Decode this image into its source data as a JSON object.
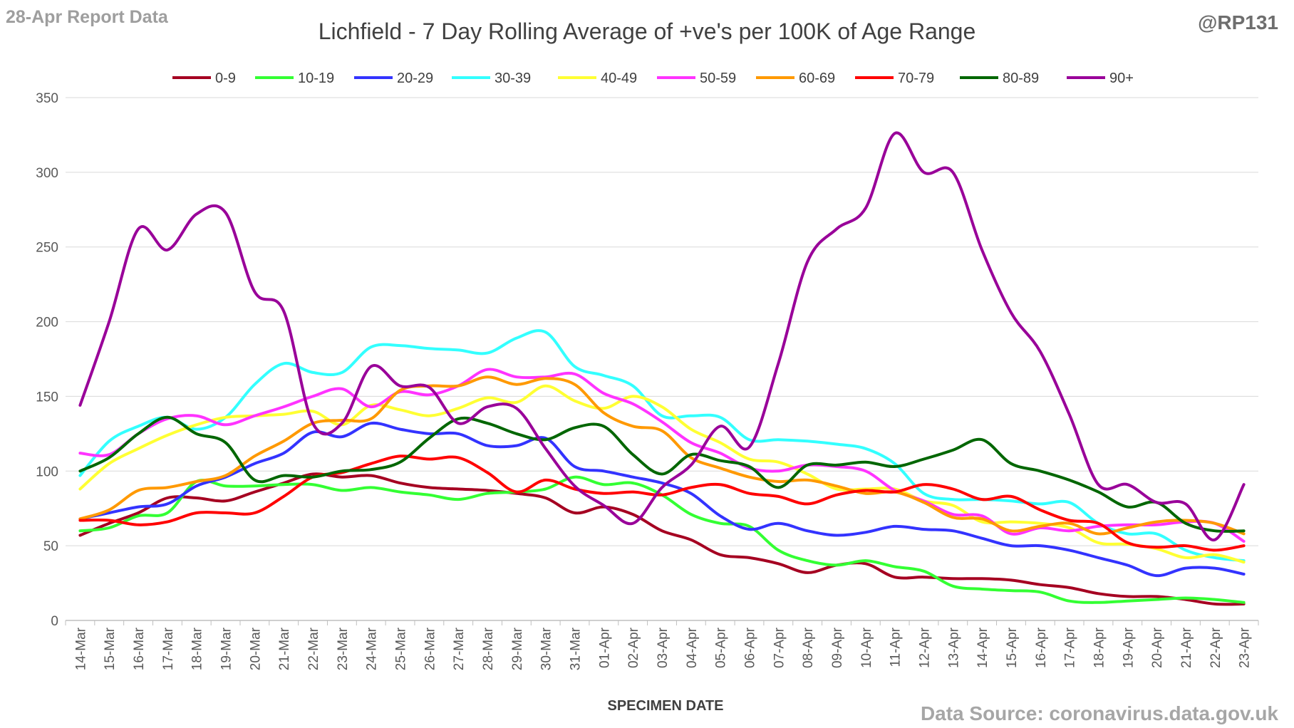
{
  "header": {
    "report_label": "28-Apr Report Data",
    "handle": "@RP131",
    "source": "Data Source: coronavirus.data.gov.uk"
  },
  "chart_data": {
    "type": "line",
    "title": "Lichfield - 7 Day Rolling Average of +ve's per 100K of Age Range",
    "xlabel": "SPECIMEN DATE",
    "ylabel": "",
    "ylim": [
      0,
      350
    ],
    "yticks": [
      0,
      50,
      100,
      150,
      200,
      250,
      300,
      350
    ],
    "grid": true,
    "legend_position": "top",
    "categories": [
      "14-Mar",
      "15-Mar",
      "16-Mar",
      "17-Mar",
      "18-Mar",
      "19-Mar",
      "20-Mar",
      "21-Mar",
      "22-Mar",
      "23-Mar",
      "24-Mar",
      "25-Mar",
      "26-Mar",
      "27-Mar",
      "28-Mar",
      "29-Mar",
      "30-Mar",
      "31-Mar",
      "01-Apr",
      "02-Apr",
      "03-Apr",
      "04-Apr",
      "05-Apr",
      "06-Apr",
      "07-Apr",
      "08-Apr",
      "09-Apr",
      "10-Apr",
      "11-Apr",
      "12-Apr",
      "13-Apr",
      "14-Apr",
      "15-Apr",
      "16-Apr",
      "17-Apr",
      "18-Apr",
      "19-Apr",
      "20-Apr",
      "21-Apr",
      "22-Apr",
      "23-Apr"
    ],
    "series": [
      {
        "name": "0-9",
        "color": "#A50021",
        "values": [
          57,
          65,
          72,
          82,
          82,
          80,
          86,
          92,
          98,
          96,
          97,
          92,
          89,
          88,
          87,
          85,
          82,
          72,
          76,
          71,
          60,
          54,
          44,
          42,
          38,
          32,
          37,
          38,
          29,
          29,
          28,
          28,
          27,
          24,
          22,
          18,
          16,
          16,
          14,
          11,
          11
        ]
      },
      {
        "name": "10-19",
        "color": "#33FF33",
        "values": [
          60,
          62,
          70,
          72,
          93,
          90,
          90,
          91,
          91,
          87,
          89,
          86,
          84,
          81,
          85,
          86,
          88,
          96,
          91,
          92,
          84,
          71,
          65,
          63,
          47,
          40,
          37,
          40,
          36,
          33,
          23,
          21,
          20,
          19,
          13,
          12,
          13,
          14,
          15,
          14,
          12
        ]
      },
      {
        "name": "20-29",
        "color": "#3333FF",
        "values": [
          68,
          72,
          76,
          78,
          90,
          96,
          105,
          112,
          126,
          123,
          132,
          128,
          125,
          125,
          117,
          117,
          122,
          103,
          100,
          96,
          92,
          85,
          70,
          61,
          65,
          60,
          57,
          59,
          63,
          61,
          60,
          55,
          50,
          50,
          47,
          42,
          37,
          30,
          35,
          35,
          31
        ]
      },
      {
        "name": "30-39",
        "color": "#33FFFF",
        "values": [
          97,
          120,
          130,
          136,
          128,
          136,
          158,
          172,
          166,
          166,
          183,
          184,
          182,
          181,
          179,
          189,
          193,
          170,
          164,
          157,
          137,
          137,
          136,
          121,
          121,
          120,
          118,
          115,
          105,
          85,
          81,
          81,
          80,
          78,
          79,
          65,
          58,
          58,
          47,
          42,
          40
        ]
      },
      {
        "name": "40-49",
        "color": "#FFFF33",
        "values": [
          88,
          105,
          115,
          124,
          131,
          136,
          137,
          138,
          140,
          131,
          144,
          141,
          137,
          142,
          149,
          146,
          157,
          147,
          142,
          150,
          143,
          128,
          119,
          108,
          106,
          98,
          88,
          88,
          88,
          80,
          77,
          66,
          66,
          65,
          62,
          52,
          51,
          48,
          42,
          44,
          39
        ]
      },
      {
        "name": "50-59",
        "color": "#FF33FF",
        "values": [
          112,
          111,
          125,
          135,
          137,
          131,
          137,
          143,
          150,
          155,
          143,
          153,
          151,
          157,
          168,
          163,
          163,
          165,
          152,
          145,
          133,
          119,
          112,
          102,
          100,
          104,
          103,
          100,
          87,
          80,
          71,
          70,
          58,
          62,
          60,
          63,
          64,
          64,
          66,
          65,
          53
        ]
      },
      {
        "name": "60-69",
        "color": "#FF9900",
        "values": [
          68,
          74,
          87,
          89,
          93,
          97,
          110,
          120,
          132,
          134,
          135,
          154,
          157,
          157,
          163,
          158,
          162,
          158,
          139,
          130,
          127,
          109,
          102,
          96,
          93,
          94,
          90,
          85,
          86,
          79,
          69,
          68,
          60,
          63,
          65,
          58,
          62,
          66,
          67,
          65,
          58
        ]
      },
      {
        "name": "70-79",
        "color": "#FF0000",
        "values": [
          67,
          67,
          64,
          66,
          72,
          72,
          72,
          83,
          96,
          99,
          105,
          110,
          108,
          109,
          99,
          86,
          94,
          88,
          85,
          86,
          84,
          89,
          91,
          85,
          83,
          78,
          84,
          87,
          86,
          91,
          88,
          81,
          83,
          74,
          67,
          65,
          52,
          49,
          50,
          47,
          50
        ]
      },
      {
        "name": "80-89",
        "color": "#006600",
        "values": [
          100,
          109,
          125,
          136,
          125,
          119,
          94,
          97,
          96,
          100,
          101,
          106,
          122,
          135,
          132,
          125,
          121,
          129,
          130,
          111,
          98,
          111,
          107,
          103,
          89,
          104,
          104,
          106,
          103,
          108,
          114,
          121,
          105,
          100,
          94,
          86,
          76,
          79,
          65,
          60,
          60
        ]
      },
      {
        "name": "90+",
        "color": "#990099",
        "values": [
          144,
          200,
          262,
          248,
          272,
          273,
          220,
          207,
          132,
          132,
          170,
          157,
          156,
          132,
          143,
          142,
          115,
          90,
          77,
          65,
          89,
          104,
          130,
          116,
          172,
          240,
          262,
          276,
          326,
          300,
          300,
          248,
          206,
          180,
          138,
          91,
          91,
          79,
          78,
          54,
          91
        ]
      }
    ]
  }
}
